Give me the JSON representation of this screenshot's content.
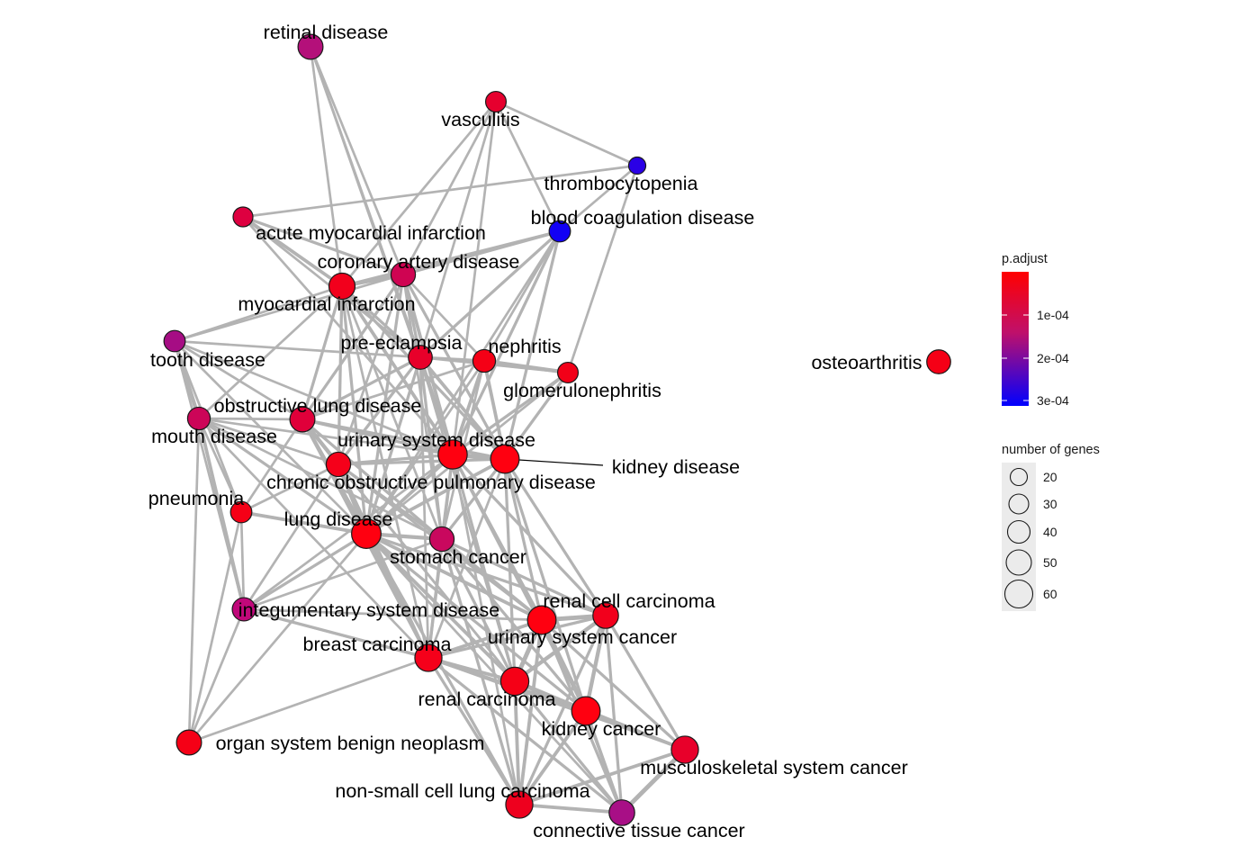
{
  "nodes": [
    {
      "id": "retinal_disease",
      "label": "retinal disease",
      "genes": 32,
      "color": "#b4107a"
    },
    {
      "id": "vasculitis",
      "label": "vasculitis",
      "genes": 18,
      "color": "#e6002e"
    },
    {
      "id": "thrombocytopenia",
      "label": "thrombocytopenia",
      "genes": 10,
      "color": "#2a00e6"
    },
    {
      "id": "blood_coagulation_disease",
      "label": "blood coagulation disease",
      "genes": 20,
      "color": "#1200f5"
    },
    {
      "id": "acute_myocardial_infarction",
      "label": "acute myocardial infarction",
      "genes": 16,
      "color": "#de0040"
    },
    {
      "id": "coronary_artery_disease",
      "label": "coronary artery disease",
      "genes": 30,
      "color": "#cf0452"
    },
    {
      "id": "myocardial_infarction",
      "label": "myocardial infarction",
      "genes": 36,
      "color": "#f2001c"
    },
    {
      "id": "tooth_disease",
      "label": "tooth disease",
      "genes": 20,
      "color": "#a60d84"
    },
    {
      "id": "pre_eclampsia",
      "label": "pre-eclampsia",
      "genes": 28,
      "color": "#e8002a"
    },
    {
      "id": "nephritis",
      "label": "nephritis",
      "genes": 24,
      "color": "#f50016"
    },
    {
      "id": "glomerulonephritis",
      "label": "glomerulonephritis",
      "genes": 18,
      "color": "#f20018"
    },
    {
      "id": "obstructive_lung_disease",
      "label": "obstructive lung disease",
      "genes": 32,
      "color": "#e0003a"
    },
    {
      "id": "mouth_disease",
      "label": "mouth disease",
      "genes": 24,
      "color": "#cc0558"
    },
    {
      "id": "urinary_system_disease",
      "label": "urinary system disease",
      "genes": 48,
      "color": "#ff0010"
    },
    {
      "id": "kidney_disease",
      "label": "kidney disease",
      "genes": 46,
      "color": "#ff0010"
    },
    {
      "id": "chronic_obstructive_pulmonary_disease",
      "label": "chronic obstructive pulmonary disease",
      "genes": 30,
      "color": "#f5001a"
    },
    {
      "id": "pneumonia",
      "label": "pneumonia",
      "genes": 20,
      "color": "#f50016"
    },
    {
      "id": "lung_disease",
      "label": "lung disease",
      "genes": 50,
      "color": "#ff0010"
    },
    {
      "id": "stomach_cancer",
      "label": "stomach cancer",
      "genes": 30,
      "color": "#c9085e"
    },
    {
      "id": "integumentary_system_disease",
      "label": "integumentary system disease",
      "genes": 26,
      "color": "#c0087a"
    },
    {
      "id": "renal_cell_carcinoma",
      "label": "renal cell carcinoma",
      "genes": 34,
      "color": "#f2001c"
    },
    {
      "id": "urinary_system_cancer",
      "label": "urinary system cancer",
      "genes": 46,
      "color": "#ff0010"
    },
    {
      "id": "breast_carcinoma",
      "label": "breast carcinoma",
      "genes": 40,
      "color": "#f5001a"
    },
    {
      "id": "renal_carcinoma",
      "label": "renal carcinoma",
      "genes": 44,
      "color": "#f50016"
    },
    {
      "id": "kidney_cancer",
      "label": "kidney cancer",
      "genes": 46,
      "color": "#ff0010"
    },
    {
      "id": "musculoskeletal_system_cancer",
      "label": "musculoskeletal system cancer",
      "genes": 40,
      "color": "#e8002a"
    },
    {
      "id": "organ_system_benign_neoplasm",
      "label": "organ system benign neoplasm",
      "genes": 32,
      "color": "#f50016"
    },
    {
      "id": "non_small_cell_lung_carcinoma",
      "label": "non-small cell lung carcinoma",
      "genes": 40,
      "color": "#ee001e"
    },
    {
      "id": "connective_tissue_cancer",
      "label": "connective tissue cancer",
      "genes": 34,
      "color": "#a80f86"
    },
    {
      "id": "osteoarthritis",
      "label": "osteoarthritis",
      "genes": 28,
      "color": "#f50016"
    }
  ],
  "edges": [
    [
      "retinal_disease",
      "myocardial_infarction",
      2
    ],
    [
      "retinal_disease",
      "coronary_artery_disease",
      2
    ],
    [
      "retinal_disease",
      "pre_eclampsia",
      2
    ],
    [
      "retinal_disease",
      "urinary_system_disease",
      2
    ],
    [
      "vasculitis",
      "thrombocytopenia",
      2
    ],
    [
      "vasculitis",
      "blood_coagulation_disease",
      2
    ],
    [
      "vasculitis",
      "myocardial_infarction",
      2
    ],
    [
      "vasculitis",
      "coronary_artery_disease",
      2
    ],
    [
      "vasculitis",
      "pre_eclampsia",
      2
    ],
    [
      "vasculitis",
      "urinary_system_disease",
      2
    ],
    [
      "thrombocytopenia",
      "blood_coagulation_disease",
      2
    ],
    [
      "thrombocytopenia",
      "glomerulonephritis",
      2
    ],
    [
      "thrombocytopenia",
      "acute_myocardial_infarction",
      2
    ],
    [
      "blood_coagulation_disease",
      "myocardial_infarction",
      3
    ],
    [
      "blood_coagulation_disease",
      "coronary_artery_disease",
      3
    ],
    [
      "blood_coagulation_disease",
      "pre_eclampsia",
      3
    ],
    [
      "blood_coagulation_disease",
      "nephritis",
      2
    ],
    [
      "blood_coagulation_disease",
      "urinary_system_disease",
      3
    ],
    [
      "blood_coagulation_disease",
      "kidney_disease",
      3
    ],
    [
      "blood_coagulation_disease",
      "lung_disease",
      2
    ],
    [
      "acute_myocardial_infarction",
      "myocardial_infarction",
      4
    ],
    [
      "acute_myocardial_infarction",
      "coronary_artery_disease",
      3
    ],
    [
      "acute_myocardial_infarction",
      "pre_eclampsia",
      2
    ],
    [
      "acute_myocardial_infarction",
      "urinary_system_disease",
      2
    ],
    [
      "coronary_artery_disease",
      "myocardial_infarction",
      5
    ],
    [
      "coronary_artery_disease",
      "pre_eclampsia",
      3
    ],
    [
      "coronary_artery_disease",
      "tooth_disease",
      2
    ],
    [
      "coronary_artery_disease",
      "obstructive_lung_disease",
      3
    ],
    [
      "coronary_artery_disease",
      "urinary_system_disease",
      4
    ],
    [
      "coronary_artery_disease",
      "kidney_disease",
      3
    ],
    [
      "coronary_artery_disease",
      "lung_disease",
      3
    ],
    [
      "coronary_artery_disease",
      "chronic_obstructive_pulmonary_disease",
      2
    ],
    [
      "coronary_artery_disease",
      "nephritis",
      2
    ],
    [
      "coronary_artery_disease",
      "stomach_cancer",
      2
    ],
    [
      "myocardial_infarction",
      "tooth_disease",
      2
    ],
    [
      "myocardial_infarction",
      "pre_eclampsia",
      3
    ],
    [
      "myocardial_infarction",
      "obstructive_lung_disease",
      3
    ],
    [
      "myocardial_infarction",
      "mouth_disease",
      2
    ],
    [
      "myocardial_infarction",
      "urinary_system_disease",
      4
    ],
    [
      "myocardial_infarction",
      "kidney_disease",
      3
    ],
    [
      "myocardial_infarction",
      "lung_disease",
      3
    ],
    [
      "myocardial_infarction",
      "chronic_obstructive_pulmonary_disease",
      3
    ],
    [
      "myocardial_infarction",
      "stomach_cancer",
      2
    ],
    [
      "myocardial_infarction",
      "breast_carcinoma",
      2
    ],
    [
      "tooth_disease",
      "mouth_disease",
      5
    ],
    [
      "tooth_disease",
      "pre_eclampsia",
      2
    ],
    [
      "tooth_disease",
      "obstructive_lung_disease",
      2
    ],
    [
      "tooth_disease",
      "urinary_system_disease",
      2
    ],
    [
      "tooth_disease",
      "lung_disease",
      2
    ],
    [
      "tooth_disease",
      "pneumonia",
      2
    ],
    [
      "tooth_disease",
      "integumentary_system_disease",
      2
    ],
    [
      "pre_eclampsia",
      "nephritis",
      3
    ],
    [
      "pre_eclampsia",
      "glomerulonephritis",
      2
    ],
    [
      "pre_eclampsia",
      "obstructive_lung_disease",
      3
    ],
    [
      "pre_eclampsia",
      "urinary_system_disease",
      4
    ],
    [
      "pre_eclampsia",
      "kidney_disease",
      4
    ],
    [
      "pre_eclampsia",
      "lung_disease",
      3
    ],
    [
      "pre_eclampsia",
      "chronic_obstructive_pulmonary_disease",
      3
    ],
    [
      "pre_eclampsia",
      "stomach_cancer",
      3
    ],
    [
      "pre_eclampsia",
      "breast_carcinoma",
      2
    ],
    [
      "pre_eclampsia",
      "renal_carcinoma",
      2
    ],
    [
      "nephritis",
      "glomerulonephritis",
      5
    ],
    [
      "nephritis",
      "urinary_system_disease",
      4
    ],
    [
      "nephritis",
      "kidney_disease",
      4
    ],
    [
      "nephritis",
      "lung_disease",
      2
    ],
    [
      "nephritis",
      "obstructive_lung_disease",
      2
    ],
    [
      "nephritis",
      "stomach_cancer",
      2
    ],
    [
      "glomerulonephritis",
      "urinary_system_disease",
      3
    ],
    [
      "glomerulonephritis",
      "kidney_disease",
      3
    ],
    [
      "glomerulonephritis",
      "lung_disease",
      2
    ],
    [
      "obstructive_lung_disease",
      "mouth_disease",
      2
    ],
    [
      "obstructive_lung_disease",
      "urinary_system_disease",
      3
    ],
    [
      "obstructive_lung_disease",
      "kidney_disease",
      3
    ],
    [
      "obstructive_lung_disease",
      "chronic_obstructive_pulmonary_disease",
      5
    ],
    [
      "obstructive_lung_disease",
      "lung_disease",
      5
    ],
    [
      "obstructive_lung_disease",
      "stomach_cancer",
      3
    ],
    [
      "obstructive_lung_disease",
      "pneumonia",
      2
    ],
    [
      "obstructive_lung_disease",
      "breast_carcinoma",
      3
    ],
    [
      "obstructive_lung_disease",
      "renal_carcinoma",
      2
    ],
    [
      "mouth_disease",
      "urinary_system_disease",
      2
    ],
    [
      "mouth_disease",
      "lung_disease",
      3
    ],
    [
      "mouth_disease",
      "chronic_obstructive_pulmonary_disease",
      2
    ],
    [
      "mouth_disease",
      "integumentary_system_disease",
      4
    ],
    [
      "mouth_disease",
      "organ_system_benign_neoplasm",
      2
    ],
    [
      "mouth_disease",
      "pneumonia",
      2
    ],
    [
      "mouth_disease",
      "stomach_cancer",
      2
    ],
    [
      "mouth_disease",
      "breast_carcinoma",
      2
    ],
    [
      "urinary_system_disease",
      "kidney_disease",
      6
    ],
    [
      "urinary_system_disease",
      "chronic_obstructive_pulmonary_disease",
      3
    ],
    [
      "urinary_system_disease",
      "lung_disease",
      4
    ],
    [
      "urinary_system_disease",
      "stomach_cancer",
      3
    ],
    [
      "urinary_system_disease",
      "integumentary_system_disease",
      2
    ],
    [
      "urinary_system_disease",
      "renal_cell_carcinoma",
      3
    ],
    [
      "urinary_system_disease",
      "urinary_system_cancer",
      3
    ],
    [
      "urinary_system_disease",
      "breast_carcinoma",
      3
    ],
    [
      "urinary_system_disease",
      "renal_carcinoma",
      3
    ],
    [
      "urinary_system_disease",
      "kidney_cancer",
      3
    ],
    [
      "urinary_system_disease",
      "non_small_cell_lung_carcinoma",
      2
    ],
    [
      "kidney_disease",
      "chronic_obstructive_pulmonary_disease",
      3
    ],
    [
      "kidney_disease",
      "lung_disease",
      4
    ],
    [
      "kidney_disease",
      "stomach_cancer",
      3
    ],
    [
      "kidney_disease",
      "renal_cell_carcinoma",
      3
    ],
    [
      "kidney_disease",
      "urinary_system_cancer",
      3
    ],
    [
      "kidney_disease",
      "renal_carcinoma",
      3
    ],
    [
      "kidney_disease",
      "kidney_cancer",
      3
    ],
    [
      "kidney_disease",
      "breast_carcinoma",
      2
    ],
    [
      "chronic_obstructive_pulmonary_disease",
      "lung_disease",
      5
    ],
    [
      "chronic_obstructive_pulmonary_disease",
      "stomach_cancer",
      3
    ],
    [
      "chronic_obstructive_pulmonary_disease",
      "pneumonia",
      2
    ],
    [
      "chronic_obstructive_pulmonary_disease",
      "integumentary_system_disease",
      2
    ],
    [
      "chronic_obstructive_pulmonary_disease",
      "breast_carcinoma",
      3
    ],
    [
      "chronic_obstructive_pulmonary_disease",
      "renal_carcinoma",
      2
    ],
    [
      "chronic_obstructive_pulmonary_disease",
      "urinary_system_cancer",
      2
    ],
    [
      "pneumonia",
      "lung_disease",
      4
    ],
    [
      "pneumonia",
      "integumentary_system_disease",
      2
    ],
    [
      "pneumonia",
      "organ_system_benign_neoplasm",
      2
    ],
    [
      "lung_disease",
      "stomach_cancer",
      5
    ],
    [
      "lung_disease",
      "integumentary_system_disease",
      3
    ],
    [
      "lung_disease",
      "breast_carcinoma",
      4
    ],
    [
      "lung_disease",
      "renal_cell_carcinoma",
      3
    ],
    [
      "lung_disease",
      "urinary_system_cancer",
      4
    ],
    [
      "lung_disease",
      "renal_carcinoma",
      4
    ],
    [
      "lung_disease",
      "kidney_cancer",
      3
    ],
    [
      "lung_disease",
      "non_small_cell_lung_carcinoma",
      3
    ],
    [
      "lung_disease",
      "organ_system_benign_neoplasm",
      2
    ],
    [
      "lung_disease",
      "connective_tissue_cancer",
      2
    ],
    [
      "stomach_cancer",
      "breast_carcinoma",
      3
    ],
    [
      "stomach_cancer",
      "renal_cell_carcinoma",
      3
    ],
    [
      "stomach_cancer",
      "urinary_system_cancer",
      4
    ],
    [
      "stomach_cancer",
      "renal_carcinoma",
      3
    ],
    [
      "stomach_cancer",
      "kidney_cancer",
      3
    ],
    [
      "stomach_cancer",
      "non_small_cell_lung_carcinoma",
      3
    ],
    [
      "stomach_cancer",
      "integumentary_system_disease",
      2
    ],
    [
      "integumentary_system_disease",
      "breast_carcinoma",
      3
    ],
    [
      "integumentary_system_disease",
      "urinary_system_cancer",
      2
    ],
    [
      "integumentary_system_disease",
      "organ_system_benign_neoplasm",
      2
    ],
    [
      "integumentary_system_disease",
      "renal_carcinoma",
      2
    ],
    [
      "renal_cell_carcinoma",
      "urinary_system_cancer",
      6
    ],
    [
      "renal_cell_carcinoma",
      "renal_carcinoma",
      5
    ],
    [
      "renal_cell_carcinoma",
      "kidney_cancer",
      5
    ],
    [
      "renal_cell_carcinoma",
      "musculoskeletal_system_cancer",
      3
    ],
    [
      "renal_cell_carcinoma",
      "breast_carcinoma",
      3
    ],
    [
      "renal_cell_carcinoma",
      "non_small_cell_lung_carcinoma",
      3
    ],
    [
      "renal_cell_carcinoma",
      "connective_tissue_cancer",
      3
    ],
    [
      "urinary_system_cancer",
      "renal_carcinoma",
      6
    ],
    [
      "urinary_system_cancer",
      "kidney_cancer",
      6
    ],
    [
      "urinary_system_cancer",
      "breast_carcinoma",
      4
    ],
    [
      "urinary_system_cancer",
      "musculoskeletal_system_cancer",
      3
    ],
    [
      "urinary_system_cancer",
      "non_small_cell_lung_carcinoma",
      4
    ],
    [
      "urinary_system_cancer",
      "connective_tissue_cancer",
      3
    ],
    [
      "breast_carcinoma",
      "renal_carcinoma",
      4
    ],
    [
      "breast_carcinoma",
      "kidney_cancer",
      4
    ],
    [
      "breast_carcinoma",
      "organ_system_benign_neoplasm",
      2
    ],
    [
      "breast_carcinoma",
      "non_small_cell_lung_carcinoma",
      3
    ],
    [
      "breast_carcinoma",
      "connective_tissue_cancer",
      3
    ],
    [
      "breast_carcinoma",
      "musculoskeletal_system_cancer",
      2
    ],
    [
      "renal_carcinoma",
      "kidney_cancer",
      6
    ],
    [
      "renal_carcinoma",
      "musculoskeletal_system_cancer",
      3
    ],
    [
      "renal_carcinoma",
      "non_small_cell_lung_carcinoma",
      4
    ],
    [
      "renal_carcinoma",
      "connective_tissue_cancer",
      3
    ],
    [
      "kidney_cancer",
      "musculoskeletal_system_cancer",
      4
    ],
    [
      "kidney_cancer",
      "non_small_cell_lung_carcinoma",
      4
    ],
    [
      "kidney_cancer",
      "connective_tissue_cancer",
      4
    ],
    [
      "musculoskeletal_system_cancer",
      "connective_tissue_cancer",
      6
    ],
    [
      "musculoskeletal_system_cancer",
      "non_small_cell_lung_carcinoma",
      4
    ],
    [
      "non_small_cell_lung_carcinoma",
      "connective_tissue_cancer",
      4
    ]
  ],
  "legend": {
    "color_title": "p.adjust",
    "color_ticks": [
      "1e-04",
      "2e-04",
      "3e-04"
    ],
    "color_low": "#ff0000",
    "color_high": "#0000ff",
    "size_title": "number of genes",
    "size_ticks": [
      "20",
      "30",
      "40",
      "50",
      "60"
    ]
  }
}
